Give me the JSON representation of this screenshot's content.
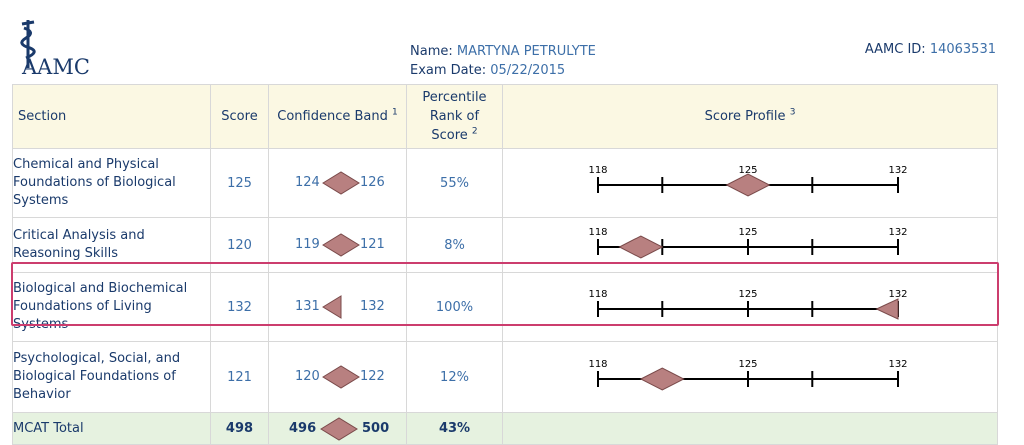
{
  "header": {
    "logo_text": "AAMC",
    "name_label": "Name:",
    "name_value": "MARTYNA PETRULYTE",
    "date_label": "Exam Date:",
    "date_value": "05/22/2015",
    "id_label": "AAMC ID:",
    "id_value": "14063531"
  },
  "columns": {
    "section": "Section",
    "score": "Score",
    "band": "Confidence Band",
    "band_note": "1",
    "percentile_line1": "Percentile",
    "percentile_line2": "Rank of",
    "percentile_line3": "Score",
    "percentile_note": "2",
    "profile": "Score Profile",
    "profile_note": "3"
  },
  "profile_scale": {
    "min": "118",
    "mid": "125",
    "max": "132",
    "min_value": 118,
    "max_value": 132
  },
  "rows": [
    {
      "section_lines": [
        "Chemical and Physical",
        "Foundations of Biological",
        "Systems"
      ],
      "score": "125",
      "band_low": "124",
      "band_high": "126",
      "percentile": "55%",
      "score_value": 125,
      "low_value": 124,
      "high_value": 126
    },
    {
      "section_lines": [
        "Critical Analysis and",
        "Reasoning Skills"
      ],
      "score": "120",
      "band_low": "119",
      "band_high": "121",
      "percentile": "8%",
      "score_value": 120,
      "low_value": 119,
      "high_value": 121
    },
    {
      "section_lines": [
        "Biological and Biochemical",
        "Foundations of Living",
        "Systems"
      ],
      "score": "132",
      "band_low": "131",
      "band_high": "132",
      "percentile": "100%",
      "score_value": 132,
      "low_value": 131,
      "high_value": 132
    },
    {
      "section_lines": [
        "Psychological, Social, and",
        "Biological Foundations of",
        "Behavior"
      ],
      "score": "121",
      "band_low": "120",
      "band_high": "122",
      "percentile": "12%",
      "score_value": 121,
      "low_value": 120,
      "high_value": 122
    }
  ],
  "total": {
    "label": "MCAT Total",
    "score": "498",
    "band_low": "496",
    "band_high": "500",
    "percentile": "43%"
  },
  "colors": {
    "marker_fill": "#b88080",
    "marker_stroke": "#7a4a4a",
    "header_bg": "#fbf8e3",
    "total_bg": "#e6f2e0",
    "highlight": "#cc3d6e"
  }
}
